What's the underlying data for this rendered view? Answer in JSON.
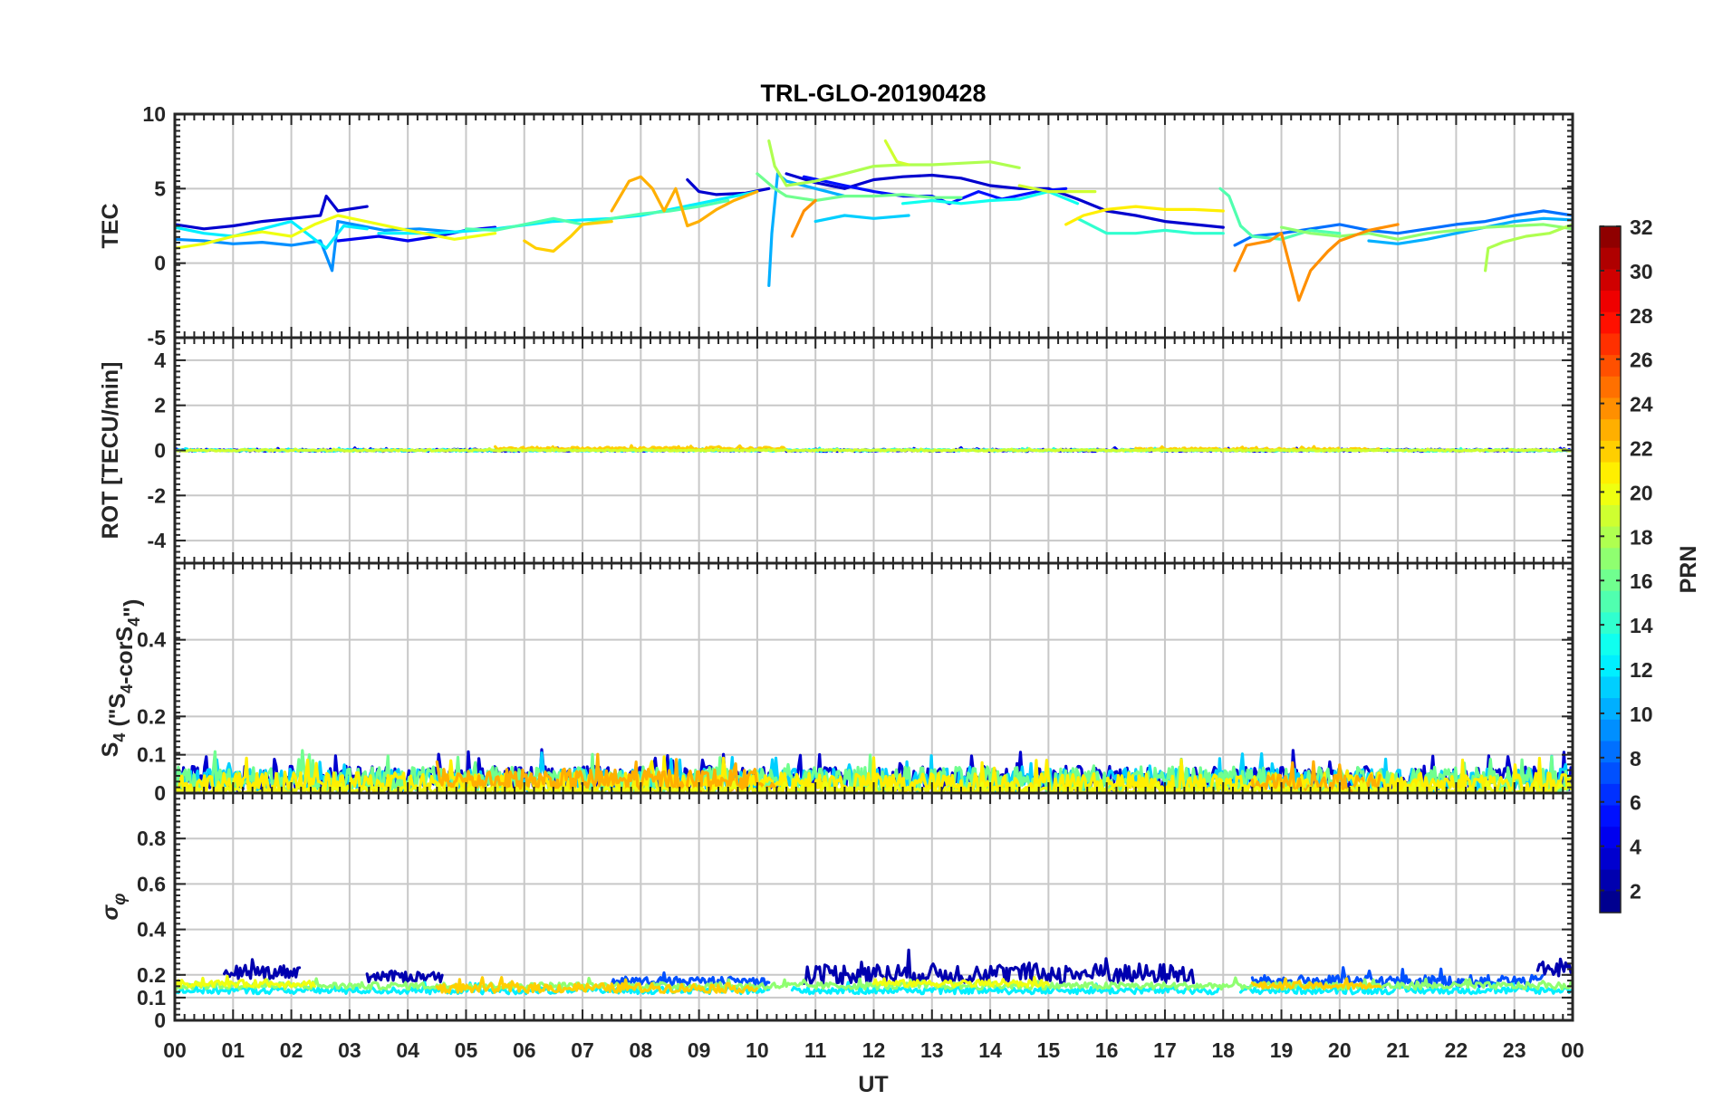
{
  "chart_data": {
    "type": "line",
    "title": "TRL-GLO-20190428",
    "xlabel": "UT",
    "x_tick_labels": [
      "00",
      "01",
      "02",
      "03",
      "04",
      "05",
      "06",
      "07",
      "08",
      "09",
      "10",
      "11",
      "12",
      "13",
      "14",
      "15",
      "16",
      "17",
      "18",
      "19",
      "20",
      "21",
      "22",
      "23",
      "00"
    ],
    "xlim": [
      0,
      24
    ],
    "panels": [
      {
        "name": "tec",
        "ylabel": "TEC",
        "ylim": [
          -5,
          10
        ],
        "y_ticks": [
          -5,
          0,
          5,
          10
        ],
        "y_tick_labels": [
          "-5",
          "0",
          "5",
          "10"
        ],
        "grid": true,
        "series": [
          {
            "prn": 3,
            "x": [
              0,
              0.5,
              1,
              1.5,
              2,
              2.5,
              2.6,
              2.8,
              3.3
            ],
            "y": [
              2.6,
              2.3,
              2.5,
              2.8,
              3.0,
              3.2,
              4.5,
              3.5,
              3.8
            ]
          },
          {
            "prn": 4,
            "x": [
              2.8,
              3.5,
              4.0,
              4.5,
              5.0,
              5.5
            ],
            "y": [
              1.5,
              1.8,
              1.5,
              1.8,
              2.2,
              2.4
            ]
          },
          {
            "prn": 3,
            "x": [
              8.8,
              9.0,
              9.3,
              9.8,
              10.2
            ],
            "y": [
              5.6,
              4.8,
              4.6,
              4.7,
              5.0
            ]
          },
          {
            "prn": 3,
            "x": [
              10.5,
              11.0,
              11.5,
              12.0,
              12.5,
              13.0,
              13.5,
              14.0,
              14.5,
              15.0,
              15.5,
              16.0,
              16.5,
              17.0,
              17.5,
              18.0
            ],
            "y": [
              6.0,
              5.4,
              5.0,
              5.6,
              5.8,
              5.9,
              5.7,
              5.2,
              5.0,
              5.0,
              4.3,
              3.5,
              3.2,
              2.8,
              2.6,
              2.4
            ]
          },
          {
            "prn": 5,
            "x": [
              10.8,
              11.5,
              12.0,
              12.5,
              13.0,
              13.3,
              13.8,
              14.2,
              14.8,
              15.3
            ],
            "y": [
              5.8,
              5.2,
              4.8,
              4.5,
              4.5,
              4.0,
              4.8,
              4.3,
              4.8,
              5.0
            ]
          },
          {
            "prn": 9,
            "x": [
              0,
              0.5,
              1,
              1.5,
              2.0,
              2.5,
              2.7,
              2.8,
              3.2,
              3.6,
              4.2,
              4.8
            ],
            "y": [
              1.6,
              1.5,
              1.3,
              1.4,
              1.2,
              1.5,
              -0.5,
              2.8,
              2.5,
              2.2,
              2.3,
              2.1
            ]
          },
          {
            "prn": 10,
            "x": [
              10.2,
              10.25,
              10.35,
              10.5,
              11.0,
              11.5
            ],
            "y": [
              -1.5,
              2.0,
              6.0,
              5.5,
              5.0,
              4.5
            ]
          },
          {
            "prn": 11,
            "x": [
              11.0,
              11.5,
              12.0,
              12.6
            ],
            "y": [
              2.8,
              3.2,
              3.0,
              3.2
            ]
          },
          {
            "prn": 12,
            "x": [
              0,
              0.5,
              1.0,
              1.5,
              2.0,
              2.6,
              2.9,
              3.3
            ],
            "y": [
              2.4,
              2.0,
              1.8,
              2.3,
              2.8,
              1.0,
              2.5,
              2.3
            ]
          },
          {
            "prn": 12,
            "x": [
              3.5,
              4.5,
              5.5,
              6.5,
              7.5,
              8.0,
              8.5,
              9.0,
              9.5,
              10.0
            ],
            "y": [
              2.0,
              2.0,
              2.3,
              2.8,
              3.0,
              3.2,
              3.6,
              4.0,
              4.4,
              4.8
            ]
          },
          {
            "prn": 13,
            "x": [
              12.5,
              13.0,
              13.5,
              14.0,
              14.5,
              15.0,
              15.5
            ],
            "y": [
              4.0,
              4.2,
              4.0,
              4.2,
              4.3,
              4.8,
              4.0
            ]
          },
          {
            "prn": 8,
            "x": [
              18.2,
              18.5,
              19.0,
              19.5,
              20.0,
              20.5,
              21.0,
              21.5,
              22.0,
              22.5,
              23.0,
              23.5,
              24.0
            ],
            "y": [
              1.2,
              1.8,
              2.0,
              2.3,
              2.6,
              2.2,
              2.0,
              2.3,
              2.6,
              2.8,
              3.2,
              3.5,
              3.2
            ]
          },
          {
            "prn": 10,
            "x": [
              20.5,
              21.0,
              21.5,
              22.0,
              22.5,
              23.0,
              23.5,
              24.0
            ],
            "y": [
              1.5,
              1.3,
              1.6,
              2.0,
              2.4,
              2.8,
              3.0,
              2.9
            ]
          },
          {
            "prn": 15,
            "x": [
              5.0,
              5.5,
              6.0,
              6.5,
              7.0,
              7.5,
              8.0,
              8.5,
              9.0,
              9.5
            ],
            "y": [
              2.3,
              2.2,
              2.6,
              3.0,
              2.6,
              3.0,
              3.3,
              3.5,
              3.8,
              4.2
            ]
          },
          {
            "prn": 15,
            "x": [
              17.95,
              18.1,
              18.3,
              18.5,
              19.0,
              19.5,
              20.0
            ],
            "y": [
              5.0,
              4.5,
              2.5,
              1.8,
              1.6,
              2.2,
              2.0
            ]
          },
          {
            "prn": 14,
            "x": [
              15.5,
              16.0,
              16.5,
              17.0,
              17.5,
              18.0
            ],
            "y": [
              3.0,
              2.0,
              2.0,
              2.2,
              2.0,
              2.0
            ]
          },
          {
            "prn": 16,
            "x": [
              10.0,
              10.3,
              10.5,
              11.0,
              11.5,
              12.0,
              12.5,
              13.0,
              13.5
            ],
            "y": [
              6.0,
              5.0,
              4.5,
              4.2,
              4.5,
              4.5,
              4.6,
              4.4,
              4.4
            ]
          },
          {
            "prn": 17,
            "x": [
              19.0,
              19.5,
              20.0,
              20.5,
              21.0,
              21.5,
              22.0,
              22.5,
              23.0,
              23.5,
              24.0
            ],
            "y": [
              2.4,
              2.0,
              1.8,
              2.0,
              1.6,
              2.0,
              2.2,
              2.4,
              2.5,
              2.6,
              2.3
            ]
          },
          {
            "prn": 18,
            "x": [
              10.2,
              10.3,
              10.5,
              11.0,
              11.5,
              12.0,
              12.5,
              13.0,
              13.5,
              14.0,
              14.5
            ],
            "y": [
              8.2,
              6.5,
              5.2,
              5.5,
              6.0,
              6.5,
              6.6,
              6.6,
              6.7,
              6.8,
              6.4
            ]
          },
          {
            "prn": 19,
            "x": [
              12.2,
              12.4,
              12.6
            ],
            "y": [
              8.2,
              6.8,
              6.6
            ]
          },
          {
            "prn": 19,
            "x": [
              14.5,
              15.0,
              15.5,
              15.8
            ],
            "y": [
              5.2,
              4.8,
              4.8,
              4.8
            ]
          },
          {
            "prn": 18,
            "x": [
              22.5,
              22.55,
              22.8,
              23.2,
              23.6,
              24.0
            ],
            "y": [
              -0.5,
              1.0,
              1.4,
              1.8,
              2.0,
              2.6
            ]
          },
          {
            "prn": 20,
            "x": [
              0,
              0.5,
              1.0,
              1.5,
              2.0,
              2.4,
              2.8,
              3.4,
              4.0,
              4.8,
              5.5
            ],
            "y": [
              1.0,
              1.3,
              1.8,
              2.1,
              1.8,
              2.6,
              3.2,
              2.7,
              2.2,
              1.6,
              2.0
            ]
          },
          {
            "prn": 21,
            "x": [
              15.3,
              15.6,
              16.0,
              16.5,
              17.0,
              17.5,
              18.0
            ],
            "y": [
              2.6,
              3.2,
              3.6,
              3.8,
              3.6,
              3.6,
              3.5
            ]
          },
          {
            "prn": 22,
            "x": [
              6.0,
              6.2,
              6.5,
              6.8,
              7.0,
              7.5
            ],
            "y": [
              1.5,
              1.0,
              0.8,
              1.8,
              2.6,
              2.8
            ]
          },
          {
            "prn": 23,
            "x": [
              7.5,
              7.8,
              8.0,
              8.2,
              8.4,
              8.6,
              8.8,
              9.0,
              9.3,
              9.6,
              10.0
            ],
            "y": [
              3.5,
              5.5,
              5.8,
              5.0,
              3.5,
              5.0,
              2.5,
              2.8,
              3.6,
              4.2,
              4.8
            ]
          },
          {
            "prn": 24,
            "x": [
              10.6,
              10.8,
              11.0
            ],
            "y": [
              1.8,
              3.5,
              4.2
            ]
          },
          {
            "prn": 24,
            "x": [
              18.2,
              18.4,
              18.8,
              19.0,
              19.3,
              19.5,
              19.8,
              20.0,
              20.5,
              21.0
            ],
            "y": [
              -0.5,
              1.2,
              1.5,
              2.0,
              -2.5,
              -0.5,
              0.8,
              1.5,
              2.2,
              2.6
            ]
          }
        ]
      },
      {
        "name": "rot",
        "ylabel": "ROT [TECU/min]",
        "ylim": [
          -5,
          5
        ],
        "y_ticks": [
          -4,
          -2,
          0,
          2,
          4
        ],
        "y_tick_labels": [
          "-4",
          "-2",
          "0",
          "2",
          "4"
        ],
        "grid": true,
        "noisy_segments": [
          {
            "prn": 4,
            "x_start": 0,
            "x_end": 24,
            "base": 0,
            "amp": 0.1
          },
          {
            "prn": 12,
            "x_start": 0,
            "x_end": 12,
            "base": 0,
            "amp": 0.08
          },
          {
            "prn": 14,
            "x_start": 12,
            "x_end": 24,
            "base": 0,
            "amp": 0.08
          },
          {
            "prn": 22,
            "x_start": 5.5,
            "x_end": 10.5,
            "base": 0.08,
            "amp": 0.12
          },
          {
            "prn": 22,
            "x_start": 16.5,
            "x_end": 20.7,
            "base": 0.05,
            "amp": 0.1
          },
          {
            "prn": 19,
            "x_start": 0,
            "x_end": 24,
            "base": 0,
            "amp": 0.06
          }
        ]
      },
      {
        "name": "s4",
        "ylabel": "S4 (\"S4-corS4\")",
        "ylim": [
          0,
          0.6
        ],
        "y_ticks": [
          0,
          0.1,
          0.2,
          0.4
        ],
        "y_tick_labels": [
          "0",
          "0.1",
          "0.2",
          "0.4"
        ],
        "grid": true,
        "noisy_segments": [
          {
            "prn": 3,
            "x_start": 0,
            "x_end": 24,
            "base": 0.035,
            "amp": 0.065
          },
          {
            "prn": 11,
            "x_start": 0,
            "x_end": 24,
            "base": 0.03,
            "amp": 0.06
          },
          {
            "prn": 16,
            "x_start": 0,
            "x_end": 24,
            "base": 0.03,
            "amp": 0.07
          },
          {
            "prn": 21,
            "x_start": 0,
            "x_end": 24,
            "base": 0.02,
            "amp": 0.06
          },
          {
            "prn": 23,
            "x_start": 4.5,
            "x_end": 10.3,
            "base": 0.03,
            "amp": 0.06
          },
          {
            "prn": 23,
            "x_start": 18.5,
            "x_end": 20.7,
            "base": 0.02,
            "amp": 0.05
          },
          {
            "prn": 20,
            "x_start": 0,
            "x_end": 24,
            "base": 0.005,
            "amp": 0.02
          }
        ]
      },
      {
        "name": "sigma_phi",
        "ylabel": "σφ",
        "ylim": [
          0,
          1
        ],
        "y_ticks": [
          0,
          0.1,
          0.2,
          0.4,
          0.6,
          0.8
        ],
        "y_tick_labels": [
          "0",
          "0.1",
          "0.2",
          "0.4",
          "0.6",
          "0.8"
        ],
        "grid": true,
        "noisy_segments": [
          {
            "prn": 2,
            "x_start": 0.85,
            "x_end": 2.15,
            "base": 0.21,
            "amp": 0.06
          },
          {
            "prn": 2,
            "x_start": 3.3,
            "x_end": 4.6,
            "base": 0.19,
            "amp": 0.05
          },
          {
            "prn": 2,
            "x_start": 10.8,
            "x_end": 17.5,
            "base": 0.2,
            "amp": 0.09
          },
          {
            "prn": 2,
            "x_start": 23.4,
            "x_end": 24,
            "base": 0.22,
            "amp": 0.07
          },
          {
            "prn": 7,
            "x_start": 18.5,
            "x_end": 23.5,
            "base": 0.17,
            "amp": 0.05
          },
          {
            "prn": 7,
            "x_start": 7.5,
            "x_end": 10.2,
            "base": 0.17,
            "amp": 0.04
          },
          {
            "prn": 12,
            "x_start": 0,
            "x_end": 10.2,
            "base": 0.13,
            "amp": 0.03
          },
          {
            "prn": 12,
            "x_start": 10.6,
            "x_end": 18.0,
            "base": 0.13,
            "amp": 0.03
          },
          {
            "prn": 12,
            "x_start": 18.3,
            "x_end": 24,
            "base": 0.13,
            "amp": 0.03
          },
          {
            "prn": 17,
            "x_start": 0,
            "x_end": 24,
            "base": 0.15,
            "amp": 0.03
          },
          {
            "prn": 20,
            "x_start": 0,
            "x_end": 2.4,
            "base": 0.16,
            "amp": 0.03
          },
          {
            "prn": 20,
            "x_start": 12.0,
            "x_end": 15.0,
            "base": 0.16,
            "amp": 0.03
          },
          {
            "prn": 22,
            "x_start": 4.5,
            "x_end": 10.0,
            "base": 0.14,
            "amp": 0.04
          },
          {
            "prn": 22,
            "x_start": 18.5,
            "x_end": 20.7,
            "base": 0.15,
            "amp": 0.03
          }
        ]
      }
    ],
    "colorbar": {
      "label": "PRN",
      "colormap": "jet",
      "range": [
        1,
        32
      ],
      "levels": 32,
      "tick_labels": [
        "2",
        "4",
        "6",
        "8",
        "10",
        "12",
        "14",
        "16",
        "18",
        "20",
        "22",
        "24",
        "26",
        "28",
        "30",
        "32"
      ],
      "tick_values": [
        2,
        4,
        6,
        8,
        10,
        12,
        14,
        16,
        18,
        20,
        22,
        24,
        26,
        28,
        30,
        32
      ]
    }
  }
}
